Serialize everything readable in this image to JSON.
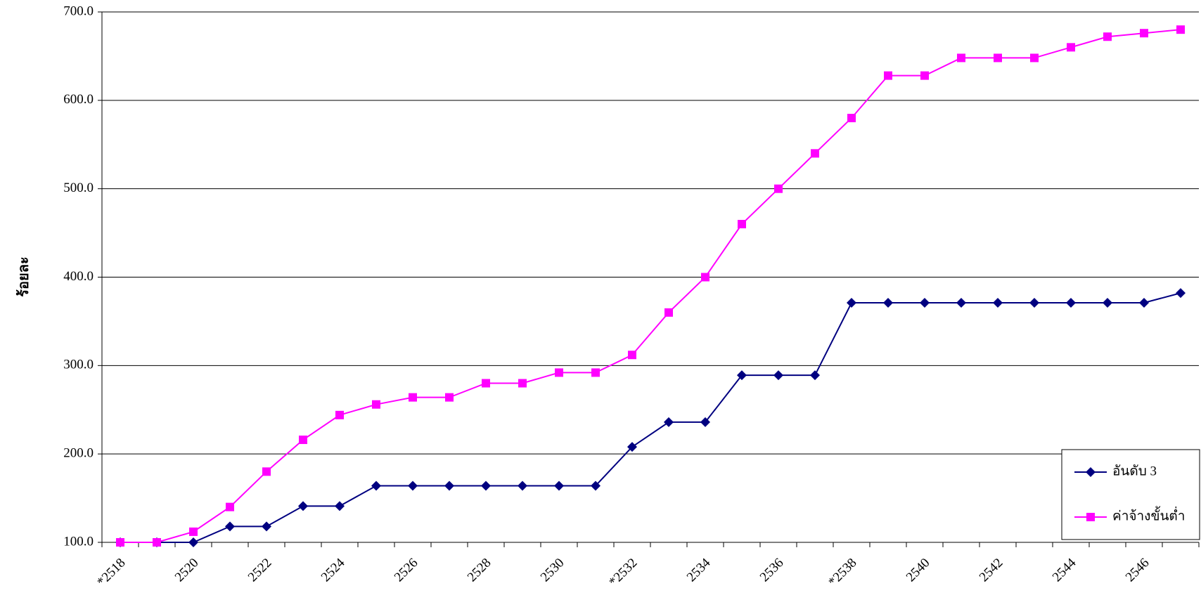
{
  "chart_data": {
    "type": "line",
    "y_label": "ร้อยละ",
    "categories": [
      "*2518",
      null,
      "2520",
      null,
      "2522",
      null,
      "2524",
      null,
      "2526",
      null,
      "2528",
      null,
      "2530",
      null,
      "*2532",
      null,
      "2534",
      null,
      "2536",
      null,
      "*2538",
      null,
      "2540",
      null,
      "2542",
      null,
      "2544",
      null,
      "2546",
      null
    ],
    "series": [
      {
        "name": "อันดับ 3",
        "color": "#000080",
        "marker": "diamond",
        "values": [
          100,
          100,
          100,
          118,
          118,
          141,
          141,
          164,
          164,
          164,
          164,
          164,
          164,
          164,
          208,
          236,
          236,
          289,
          289,
          289,
          371,
          371,
          371,
          371,
          371,
          371,
          371,
          371,
          371,
          382
        ]
      },
      {
        "name": "ค่าจ้างขั้นต่ำ",
        "color": "#ff00ff",
        "marker": "square",
        "values": [
          100,
          100,
          112,
          140,
          180,
          216,
          244,
          256,
          264,
          264,
          280,
          280,
          292,
          292,
          312,
          360,
          400,
          460,
          500,
          540,
          580,
          628,
          628,
          648,
          648,
          648,
          660,
          672,
          676,
          680
        ]
      }
    ],
    "ylim": [
      100,
      700
    ],
    "yticks": [
      {
        "value": 100,
        "label": "100.0"
      },
      {
        "value": 200,
        "label": "200.0"
      },
      {
        "value": 300,
        "label": "300.0"
      },
      {
        "value": 400,
        "label": "400.0"
      },
      {
        "value": 500,
        "label": "500.0"
      },
      {
        "value": 600,
        "label": "600.0"
      },
      {
        "value": 700,
        "label": "700.0"
      }
    ],
    "grid": true,
    "legend": "lower right"
  }
}
